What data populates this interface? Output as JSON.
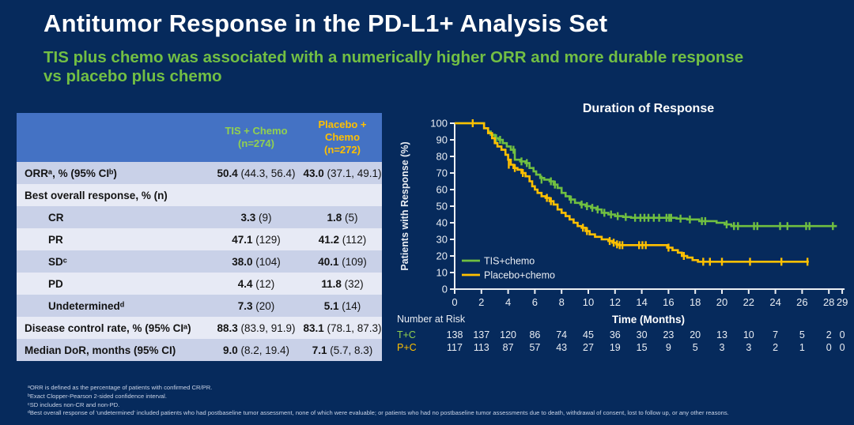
{
  "slide": {
    "title": "Antitumor Response in the PD-L1+ Analysis Set",
    "subtitle": "TIS plus chemo was associated with a numerically higher ORR and more durable response vs placebo plus chemo"
  },
  "colors": {
    "background": "#062a5c",
    "table_header_blue": "#4472c4",
    "row_dark": "#c9d1e8",
    "row_light": "#e7eaf5",
    "tis_green": "#92d14f",
    "placebo_orange": "#ffc000",
    "curve_green": "#70bf41",
    "curve_orange": "#ffc000",
    "subtitle_green": "#72bf44",
    "axis_white": "#eceff3"
  },
  "table": {
    "columns": [
      {
        "label": "TIS + Chemo",
        "n": "(n=274)",
        "color": "#92d14f"
      },
      {
        "label": "Placebo + Chemo",
        "n": "(n=272)",
        "color": "#ffc000"
      }
    ],
    "rows": [
      {
        "label": "ORRᵃ, % (95% CIᵇ)",
        "indent": false,
        "tis": "50.4",
        "tis_ci": "(44.3, 56.4)",
        "pbo": "43.0",
        "pbo_ci": "(37.1, 49.1)"
      },
      {
        "label": "Best overall response, % (n)",
        "indent": false,
        "tis": "",
        "tis_ci": "",
        "pbo": "",
        "pbo_ci": ""
      },
      {
        "label": "CR",
        "indent": true,
        "tis": "3.3",
        "tis_ci": "(9)",
        "pbo": "1.8",
        "pbo_ci": "(5)"
      },
      {
        "label": "PR",
        "indent": true,
        "tis": "47.1",
        "tis_ci": "(129)",
        "pbo": "41.2",
        "pbo_ci": "(112)"
      },
      {
        "label": "SDᶜ",
        "indent": true,
        "tis": "38.0",
        "tis_ci": "(104)",
        "pbo": "40.1",
        "pbo_ci": "(109)"
      },
      {
        "label": "PD",
        "indent": true,
        "tis": "4.4",
        "tis_ci": "(12)",
        "pbo": "11.8",
        "pbo_ci": "(32)"
      },
      {
        "label": "Undeterminedᵈ",
        "indent": true,
        "tis": "7.3",
        "tis_ci": "(20)",
        "pbo": "5.1",
        "pbo_ci": "(14)"
      },
      {
        "label": "Disease control rate, % (95% CIᵃ)",
        "indent": false,
        "tis": "88.3",
        "tis_ci": "(83.9, 91.9)",
        "pbo": "83.1",
        "pbo_ci": "(78.1, 87.3)"
      },
      {
        "label": "Median DoR, months (95% CI)",
        "indent": false,
        "tis": "9.0",
        "tis_ci": "(8.2, 19.4)",
        "pbo": "7.1",
        "pbo_ci": "(5.7, 8.3)"
      }
    ]
  },
  "chart_data": {
    "type": "line",
    "subtype": "kaplan-meier-step",
    "title": "Duration of Response",
    "xlabel": "Time (Months)",
    "ylabel": "Patients with Response (%)",
    "xlim": [
      0,
      29.5
    ],
    "ylim": [
      0,
      100
    ],
    "xticks": [
      0,
      2,
      4,
      6,
      8,
      10,
      12,
      14,
      16,
      18,
      20,
      22,
      24,
      26,
      28,
      29
    ],
    "yticks": [
      0,
      10,
      20,
      30,
      40,
      50,
      60,
      70,
      80,
      90,
      100
    ],
    "grid": false,
    "legend_position": "lower-left",
    "series": [
      {
        "name": "TIS+chemo",
        "color": "#70bf41",
        "steps": [
          [
            0,
            100
          ],
          [
            2.2,
            97
          ],
          [
            2.5,
            95
          ],
          [
            2.7,
            93
          ],
          [
            3.0,
            91
          ],
          [
            3.3,
            90
          ],
          [
            3.6,
            88
          ],
          [
            3.9,
            86
          ],
          [
            4.2,
            84
          ],
          [
            4.5,
            78
          ],
          [
            4.9,
            77
          ],
          [
            5.3,
            76
          ],
          [
            5.6,
            73
          ],
          [
            5.9,
            71
          ],
          [
            6.1,
            69
          ],
          [
            6.4,
            67
          ],
          [
            6.7,
            66
          ],
          [
            7.1,
            65
          ],
          [
            7.4,
            63
          ],
          [
            7.7,
            61
          ],
          [
            8.0,
            58
          ],
          [
            8.3,
            56
          ],
          [
            8.6,
            54
          ],
          [
            9.0,
            52
          ],
          [
            9.4,
            51
          ],
          [
            9.8,
            50
          ],
          [
            10.2,
            49
          ],
          [
            10.6,
            48
          ],
          [
            11.0,
            46
          ],
          [
            11.5,
            45
          ],
          [
            12.0,
            44
          ],
          [
            12.6,
            43.5
          ],
          [
            13.2,
            43
          ],
          [
            16.6,
            42.5
          ],
          [
            17.4,
            42
          ],
          [
            18.3,
            41
          ],
          [
            19.6,
            40
          ],
          [
            20.2,
            39
          ],
          [
            20.7,
            38
          ],
          [
            28.6,
            38
          ]
        ],
        "censors": [
          [
            3.1,
            91
          ],
          [
            3.4,
            90
          ],
          [
            4.4,
            84
          ],
          [
            5.0,
            77
          ],
          [
            5.4,
            76
          ],
          [
            6.5,
            66
          ],
          [
            7.2,
            65
          ],
          [
            7.5,
            63
          ],
          [
            8.7,
            54
          ],
          [
            9.5,
            51
          ],
          [
            9.9,
            50
          ],
          [
            10.3,
            49
          ],
          [
            10.7,
            48
          ],
          [
            11.2,
            46
          ],
          [
            11.7,
            45
          ],
          [
            12.2,
            44
          ],
          [
            12.8,
            43.5
          ],
          [
            13.5,
            43
          ],
          [
            13.9,
            43
          ],
          [
            14.2,
            43
          ],
          [
            14.5,
            43
          ],
          [
            14.9,
            43
          ],
          [
            15.3,
            43
          ],
          [
            15.85,
            43
          ],
          [
            16.05,
            43
          ],
          [
            16.2,
            43
          ],
          [
            16.9,
            42.5
          ],
          [
            17.6,
            42
          ],
          [
            18.5,
            41
          ],
          [
            18.75,
            41
          ],
          [
            20.35,
            39
          ],
          [
            20.9,
            38
          ],
          [
            21.2,
            38
          ],
          [
            22.4,
            38
          ],
          [
            22.65,
            38
          ],
          [
            24.35,
            38
          ],
          [
            24.9,
            38
          ],
          [
            26.3,
            38
          ],
          [
            26.55,
            38
          ],
          [
            28.3,
            38
          ]
        ]
      },
      {
        "name": "Placebo+chemo",
        "color": "#ffc000",
        "steps": [
          [
            0,
            100
          ],
          [
            2.2,
            97
          ],
          [
            2.5,
            94
          ],
          [
            2.8,
            91
          ],
          [
            3.0,
            88
          ],
          [
            3.2,
            86
          ],
          [
            3.5,
            84
          ],
          [
            3.8,
            81
          ],
          [
            4.0,
            78
          ],
          [
            4.2,
            75
          ],
          [
            4.4,
            73
          ],
          [
            4.7,
            72
          ],
          [
            5.0,
            70
          ],
          [
            5.3,
            68
          ],
          [
            5.6,
            65
          ],
          [
            5.8,
            62
          ],
          [
            6.0,
            60
          ],
          [
            6.2,
            58
          ],
          [
            6.5,
            56
          ],
          [
            6.8,
            55
          ],
          [
            7.1,
            53
          ],
          [
            7.4,
            51
          ],
          [
            7.7,
            48
          ],
          [
            8.0,
            46
          ],
          [
            8.3,
            44
          ],
          [
            8.6,
            42
          ],
          [
            8.9,
            40
          ],
          [
            9.2,
            38
          ],
          [
            9.5,
            37
          ],
          [
            9.8,
            35
          ],
          [
            10.1,
            33
          ],
          [
            10.5,
            31.5
          ],
          [
            11.0,
            30
          ],
          [
            11.5,
            29
          ],
          [
            11.8,
            28
          ],
          [
            12.1,
            27
          ],
          [
            12.3,
            26.5
          ],
          [
            15.9,
            25
          ],
          [
            16.3,
            23.5
          ],
          [
            16.7,
            22
          ],
          [
            17.0,
            20
          ],
          [
            17.4,
            19
          ],
          [
            17.8,
            17.5
          ],
          [
            18.2,
            16.5
          ],
          [
            26.5,
            16.5
          ]
        ],
        "censors": [
          [
            1.35,
            100
          ],
          [
            4.05,
            75
          ],
          [
            4.5,
            73
          ],
          [
            5.1,
            70
          ],
          [
            6.9,
            55
          ],
          [
            7.2,
            53
          ],
          [
            9.6,
            37
          ],
          [
            9.9,
            35
          ],
          [
            11.6,
            29
          ],
          [
            11.9,
            28
          ],
          [
            12.15,
            27
          ],
          [
            12.35,
            26.5
          ],
          [
            12.55,
            26.5
          ],
          [
            13.8,
            26.5
          ],
          [
            14.05,
            26.5
          ],
          [
            14.3,
            26.5
          ],
          [
            16.0,
            25
          ],
          [
            17.15,
            20
          ],
          [
            18.6,
            16.5
          ],
          [
            19.1,
            16.5
          ],
          [
            20.0,
            16.5
          ],
          [
            22.1,
            16.5
          ],
          [
            24.45,
            16.5
          ],
          [
            26.4,
            16.5
          ]
        ]
      }
    ],
    "number_at_risk": {
      "heading": "Number at Risk",
      "time_points": [
        0,
        2,
        4,
        6,
        8,
        10,
        12,
        14,
        16,
        18,
        20,
        22,
        24,
        26,
        28,
        29
      ],
      "rows": [
        {
          "label": "T+C",
          "color": "#92d14f",
          "values": [
            138,
            137,
            120,
            86,
            74,
            45,
            36,
            30,
            23,
            20,
            13,
            10,
            7,
            5,
            2,
            0
          ]
        },
        {
          "label": "P+C",
          "color": "#ffc000",
          "values": [
            117,
            113,
            87,
            57,
            43,
            27,
            19,
            15,
            9,
            5,
            3,
            3,
            2,
            1,
            0,
            0
          ]
        }
      ]
    }
  },
  "footnotes": [
    "ᵃORR is defined as the percentage of patients with confirmed CR/PR.",
    "ᵇExact Clopper-Pearson 2-sided confidence interval.",
    "ᶜSD includes non-CR and non-PD.",
    "ᵈBest overall response of 'undetermined' included patients who had postbaseline tumor assessment, none of which were evaluable; or patients who had no postbaseline tumor assessments due to death, withdrawal of consent, lost to follow up, or any other reasons."
  ]
}
